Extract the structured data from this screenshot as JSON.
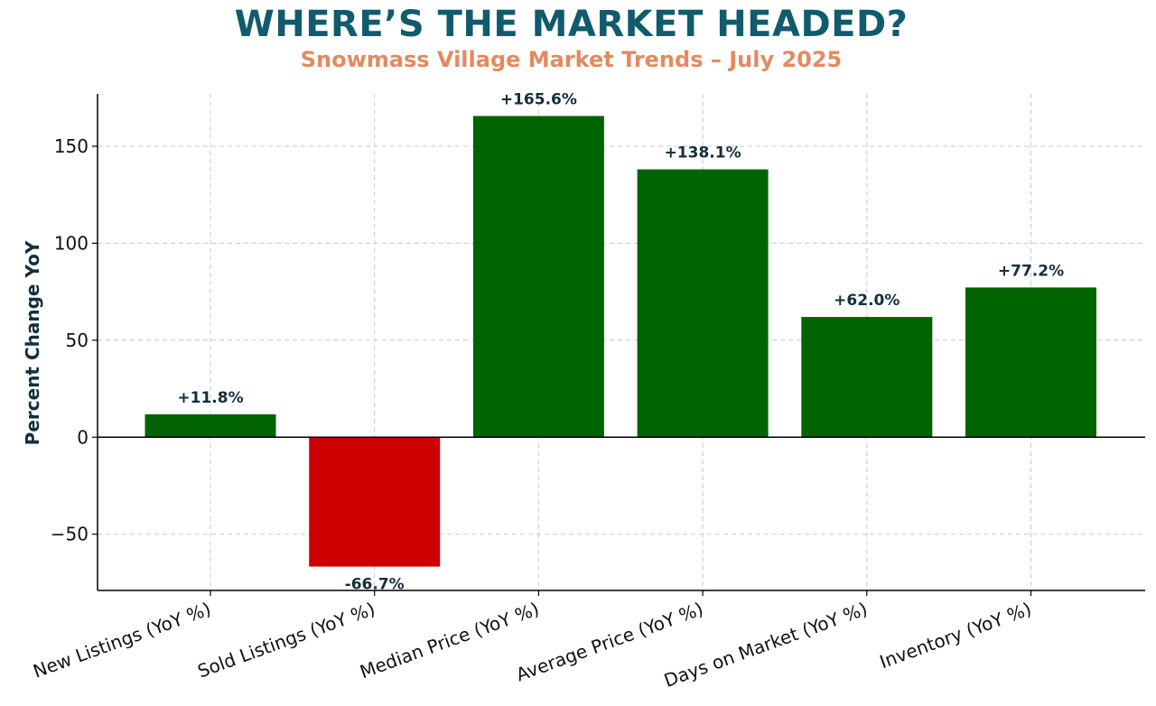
{
  "header": {
    "title": "WHERE’S THE MARKET HEADED?",
    "subtitle": "Snowmass Village Market Trends – July 2025"
  },
  "colors": {
    "title": "#115b6e",
    "subtitle": "#e38a5e",
    "positive": "#006400",
    "negative": "#cc0000",
    "label": "#12303d"
  },
  "chart_data": {
    "type": "bar",
    "title": "WHERE’S THE MARKET HEADED?",
    "subtitle": "Snowmass Village Market Trends – July 2025",
    "xlabel": "",
    "ylabel": "Percent Change YoY",
    "categories": [
      "New Listings (YoY %)",
      "Sold Listings (YoY %)",
      "Median Price (YoY %)",
      "Average Price (YoY %)",
      "Days on Market (YoY %)",
      "Inventory (YoY %)"
    ],
    "values": [
      11.8,
      -66.7,
      165.6,
      138.1,
      62.0,
      77.2
    ],
    "data_labels": [
      "+11.8%",
      "-66.7%",
      "+165.6%",
      "+138.1%",
      "+62.0%",
      "+77.2%"
    ],
    "ylim": [
      -79,
      177
    ],
    "yticks": [
      -50,
      0,
      50,
      100,
      150
    ],
    "ytick_labels": [
      "−50",
      "0",
      "50",
      "100",
      "150"
    ],
    "grid": true,
    "legend": "none"
  }
}
